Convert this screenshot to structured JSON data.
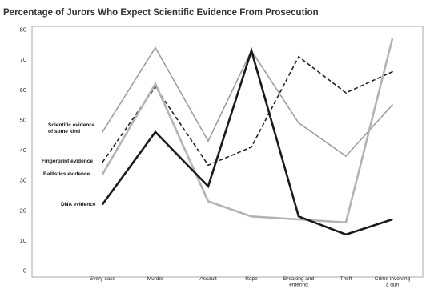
{
  "chart_data": {
    "type": "line",
    "title": "Percentage of Jurors Who Expect Scientific Evidence From Prosecution",
    "categories": [
      [
        "Every case"
      ],
      [
        "Murder"
      ],
      [
        "Assault"
      ],
      [
        "Rape"
      ],
      [
        "Breaking and",
        "entering"
      ],
      [
        "Theft"
      ],
      [
        "Crime involving",
        "a gun"
      ]
    ],
    "ylim": [
      0,
      80
    ],
    "yticks": [
      0,
      10,
      20,
      30,
      40,
      50,
      60,
      70,
      80
    ],
    "grid": false,
    "legend": "inline-left",
    "series": [
      {
        "name": [
          "Scientific evidence",
          "of some kind"
        ],
        "values": [
          46,
          74,
          43,
          73,
          49,
          38,
          55
        ],
        "color": "#9a9a9a",
        "style": "solid"
      },
      {
        "name": [
          "Fingerprint evidence"
        ],
        "values": [
          36,
          61,
          35,
          41,
          71,
          59,
          66
        ],
        "color": "#222222",
        "style": "dashed"
      },
      {
        "name": [
          "Ballistics evidence"
        ],
        "values": [
          32,
          62,
          23,
          18,
          17,
          16,
          77
        ],
        "color": "#b3b3b3",
        "style": "solid-thick"
      },
      {
        "name": [
          "DNA evidence"
        ],
        "values": [
          22,
          46,
          28,
          73,
          18,
          12,
          17
        ],
        "color": "#1a1a1a",
        "style": "solid-thick"
      }
    ]
  }
}
